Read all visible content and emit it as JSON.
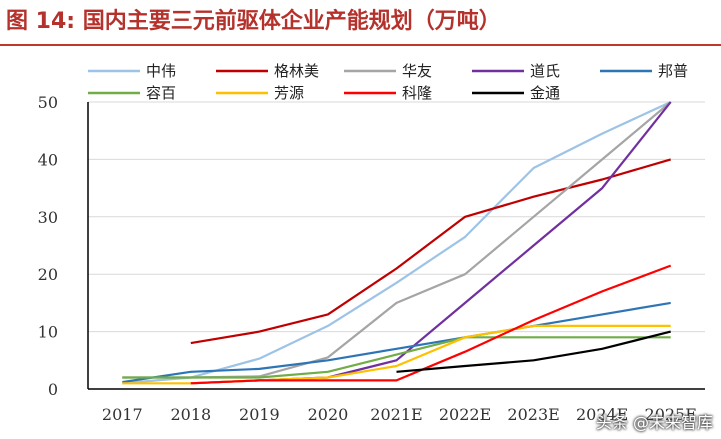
{
  "title": "图 14:  国内主要三元前驱体企业产能规划（万吨）",
  "watermark": "头条 @未来智库",
  "chart_data": {
    "type": "line",
    "categories": [
      "2017",
      "2018",
      "2019",
      "2020",
      "2021E",
      "2022E",
      "2023E",
      "2024E",
      "2025E"
    ],
    "ylim": [
      0,
      50
    ],
    "yticks": [
      0,
      10,
      20,
      30,
      40,
      50
    ],
    "legend_position": "top",
    "series": [
      {
        "name": "中伟",
        "color": "#9dc3e6",
        "values": [
          1,
          2,
          5.3,
          11,
          18.5,
          26.5,
          38.5,
          44.5,
          50
        ]
      },
      {
        "name": "格林美",
        "color": "#c00000",
        "values": [
          null,
          8,
          10,
          13,
          21,
          30,
          33.5,
          36.5,
          40
        ]
      },
      {
        "name": "华友",
        "color": "#a5a5a5",
        "values": [
          2,
          2,
          2.2,
          5.5,
          15,
          20,
          30,
          40,
          50
        ]
      },
      {
        "name": "道氏",
        "color": "#7030a0",
        "values": [
          null,
          1,
          1.5,
          2,
          5,
          15,
          25,
          35,
          50
        ]
      },
      {
        "name": "邦普",
        "color": "#2e75b6",
        "values": [
          1.2,
          3,
          3.5,
          5,
          7,
          9,
          11,
          13,
          15
        ]
      },
      {
        "name": "容百",
        "color": "#70ad47",
        "values": [
          2,
          2,
          2,
          3,
          6,
          9,
          9,
          9,
          9
        ]
      },
      {
        "name": "芳源",
        "color": "#ffc000",
        "values": [
          1,
          1,
          1.5,
          2,
          4,
          9,
          11,
          11,
          11
        ]
      },
      {
        "name": "科隆",
        "color": "#ff0000",
        "values": [
          null,
          1,
          1.5,
          1.5,
          1.5,
          6.5,
          12,
          17,
          21.5
        ]
      },
      {
        "name": "金通",
        "color": "#000000",
        "values": [
          null,
          null,
          null,
          null,
          3,
          4,
          5,
          7,
          10
        ]
      }
    ]
  }
}
